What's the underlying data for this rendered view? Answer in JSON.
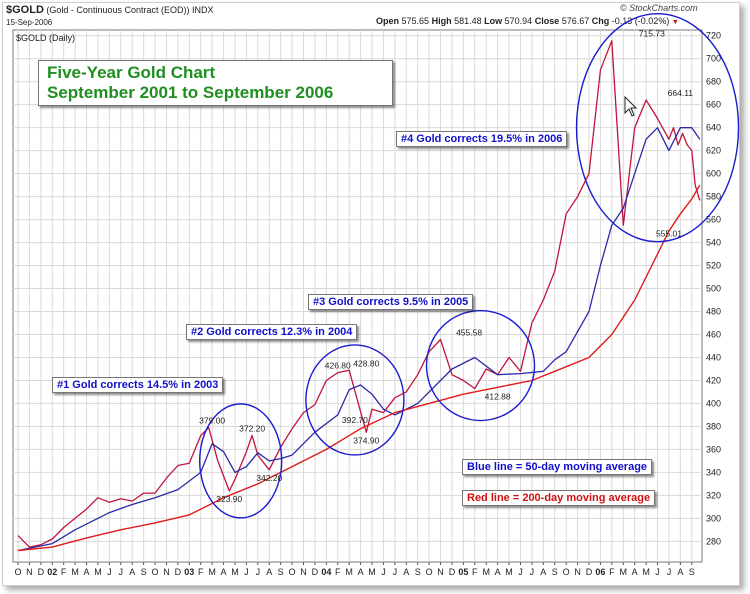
{
  "header": {
    "symbol": "$GOLD",
    "description": "(Gold - Continuous Contract (EOD))",
    "exchange": "INDX",
    "date": "15-Sep-2006",
    "open_label": "Open",
    "open": "575.65",
    "high_label": "High",
    "high": "581.48",
    "low_label": "Low",
    "low": "570.94",
    "close_label": "Close",
    "close": "576.67",
    "chg_label": "Chg",
    "chg": "-0.13 (-0.02%)",
    "credit": "© StockCharts.com"
  },
  "chart_data": {
    "type": "line",
    "legend_label": "$GOLD (Daily)",
    "title": "Five-Year Gold Chart",
    "subtitle": "September 2001 to September 2006",
    "ylim": [
      262,
      725
    ],
    "yticks": [
      280,
      300,
      320,
      340,
      360,
      380,
      400,
      420,
      440,
      460,
      480,
      500,
      520,
      540,
      560,
      580,
      600,
      620,
      640,
      660,
      680,
      700,
      720
    ],
    "x_tick_labels": [
      "O",
      "N",
      "D",
      "02",
      "F",
      "M",
      "A",
      "M",
      "J",
      "J",
      "A",
      "S",
      "O",
      "N",
      "D",
      "03",
      "F",
      "M",
      "A",
      "M",
      "J",
      "J",
      "A",
      "S",
      "O",
      "N",
      "D",
      "04",
      "F",
      "M",
      "A",
      "M",
      "J",
      "J",
      "A",
      "S",
      "O",
      "N",
      "D",
      "05",
      "F",
      "M",
      "A",
      "M",
      "J",
      "J",
      "A",
      "S",
      "O",
      "N",
      "D",
      "06",
      "F",
      "M",
      "A",
      "M",
      "J",
      "J",
      "A",
      "S"
    ],
    "series": [
      {
        "role": "price",
        "color": "#c0143c",
        "x": [
          0,
          1,
          2,
          3,
          4,
          5,
          6,
          7,
          8,
          9,
          10,
          11,
          12,
          13,
          14,
          15,
          16,
          16.7,
          17.5,
          18.5,
          19,
          20,
          20.5,
          21,
          22,
          23,
          24,
          25,
          26,
          27,
          28,
          29,
          30,
          30.5,
          31,
          32,
          33,
          34,
          35,
          36,
          37,
          38,
          39,
          40,
          41,
          42,
          43,
          44,
          45,
          46,
          47,
          48,
          49,
          50,
          51,
          52,
          53,
          54,
          55,
          56,
          57,
          57.4,
          57.8,
          58.2,
          58.6,
          59,
          59.3,
          59.7
        ],
        "y": [
          285,
          275,
          277,
          282,
          292,
          300,
          308,
          318,
          314,
          317,
          315,
          322,
          322,
          335,
          346,
          348,
          372,
          379,
          350,
          323.9,
          334,
          358,
          372.2,
          355,
          342.2,
          362,
          378,
          392,
          399,
          420,
          426.8,
          428.8,
          392.7,
          374.9,
          395,
          392,
          405,
          410,
          425,
          445,
          455.6,
          425,
          420,
          412.9,
          430,
          425,
          440,
          428,
          470,
          490,
          515,
          565,
          580,
          600,
          690,
          715.7,
          555,
          640,
          664.1,
          648,
          630,
          640,
          625,
          635,
          625,
          620,
          590,
          576.7
        ]
      },
      {
        "name": "50-day moving average",
        "color": "#2a2aa8",
        "x": [
          0,
          3,
          5,
          8,
          10,
          12,
          14,
          16,
          17,
          18,
          19,
          20,
          21,
          22,
          23,
          24,
          26,
          28,
          29,
          30,
          31,
          32,
          33,
          35,
          37,
          38,
          40,
          42,
          44,
          46,
          47,
          48,
          50,
          51,
          52,
          53,
          54,
          55,
          56,
          57,
          58,
          59,
          59.7
        ],
        "y": [
          272,
          278,
          290,
          305,
          312,
          318,
          325,
          340,
          365,
          358,
          340,
          345,
          357,
          350,
          352,
          355,
          375,
          390,
          412,
          416,
          408,
          395,
          390,
          400,
          420,
          430,
          440,
          425,
          426,
          428,
          438,
          445,
          480,
          520,
          555,
          570,
          600,
          630,
          640,
          620,
          640,
          640,
          630
        ]
      },
      {
        "name": "200-day moving average",
        "color": "#e01a1a",
        "x": [
          0,
          3,
          6,
          9,
          12,
          15,
          18,
          21,
          24,
          27,
          30,
          33,
          36,
          39,
          42,
          45,
          48,
          50,
          52,
          54,
          56,
          57,
          58,
          59,
          59.7
        ],
        "y": [
          272,
          275,
          283,
          290,
          296,
          303,
          318,
          330,
          345,
          360,
          378,
          392,
          400,
          408,
          414,
          420,
          432,
          440,
          460,
          490,
          530,
          550,
          565,
          578,
          590
        ]
      }
    ],
    "annotations": [
      {
        "text": "379.00",
        "x": 17,
        "y": 379
      },
      {
        "text": "372.20",
        "x": 20.5,
        "y": 372.2
      },
      {
        "text": "342.20",
        "x": 22,
        "y": 342.2
      },
      {
        "text": "323.90",
        "x": 18.5,
        "y": 323.9
      },
      {
        "text": "426.80",
        "x": 28,
        "y": 426.8
      },
      {
        "text": "428.80",
        "x": 30.5,
        "y": 428.8
      },
      {
        "text": "392.70",
        "x": 29.5,
        "y": 392.7
      },
      {
        "text": "374.90",
        "x": 30.5,
        "y": 374.9
      },
      {
        "text": "455.58",
        "x": 39.5,
        "y": 455.6
      },
      {
        "text": "412.88",
        "x": 42,
        "y": 412.9
      },
      {
        "text": "715.73",
        "x": 55.5,
        "y": 715.7
      },
      {
        "text": "664.11",
        "x": 58,
        "y": 664.1
      },
      {
        "text": "555.01",
        "x": 57,
        "y": 555
      }
    ],
    "highlights": [
      {
        "label": "#1 Gold corrects 14.5% in 2003",
        "cx": 19.5,
        "cy": 350
      },
      {
        "label": "#2 Gold corrects 12.3% in 2004",
        "cx": 29.5,
        "cy": 403
      },
      {
        "label": "#3 Gold corrects 9.5% in 2005",
        "cx": 40.5,
        "cy": 433
      },
      {
        "label": "#4 Gold corrects 19.5% in 2006",
        "cx": 56,
        "cy": 640
      }
    ]
  },
  "legend_notes": {
    "blue": "Blue line = 50-day moving average",
    "red": "Red line = 200-day moving average"
  },
  "colors": {
    "circle": "#1b1bd0",
    "grid": "#d9d9d9",
    "title_green": "#1f8f1f"
  }
}
